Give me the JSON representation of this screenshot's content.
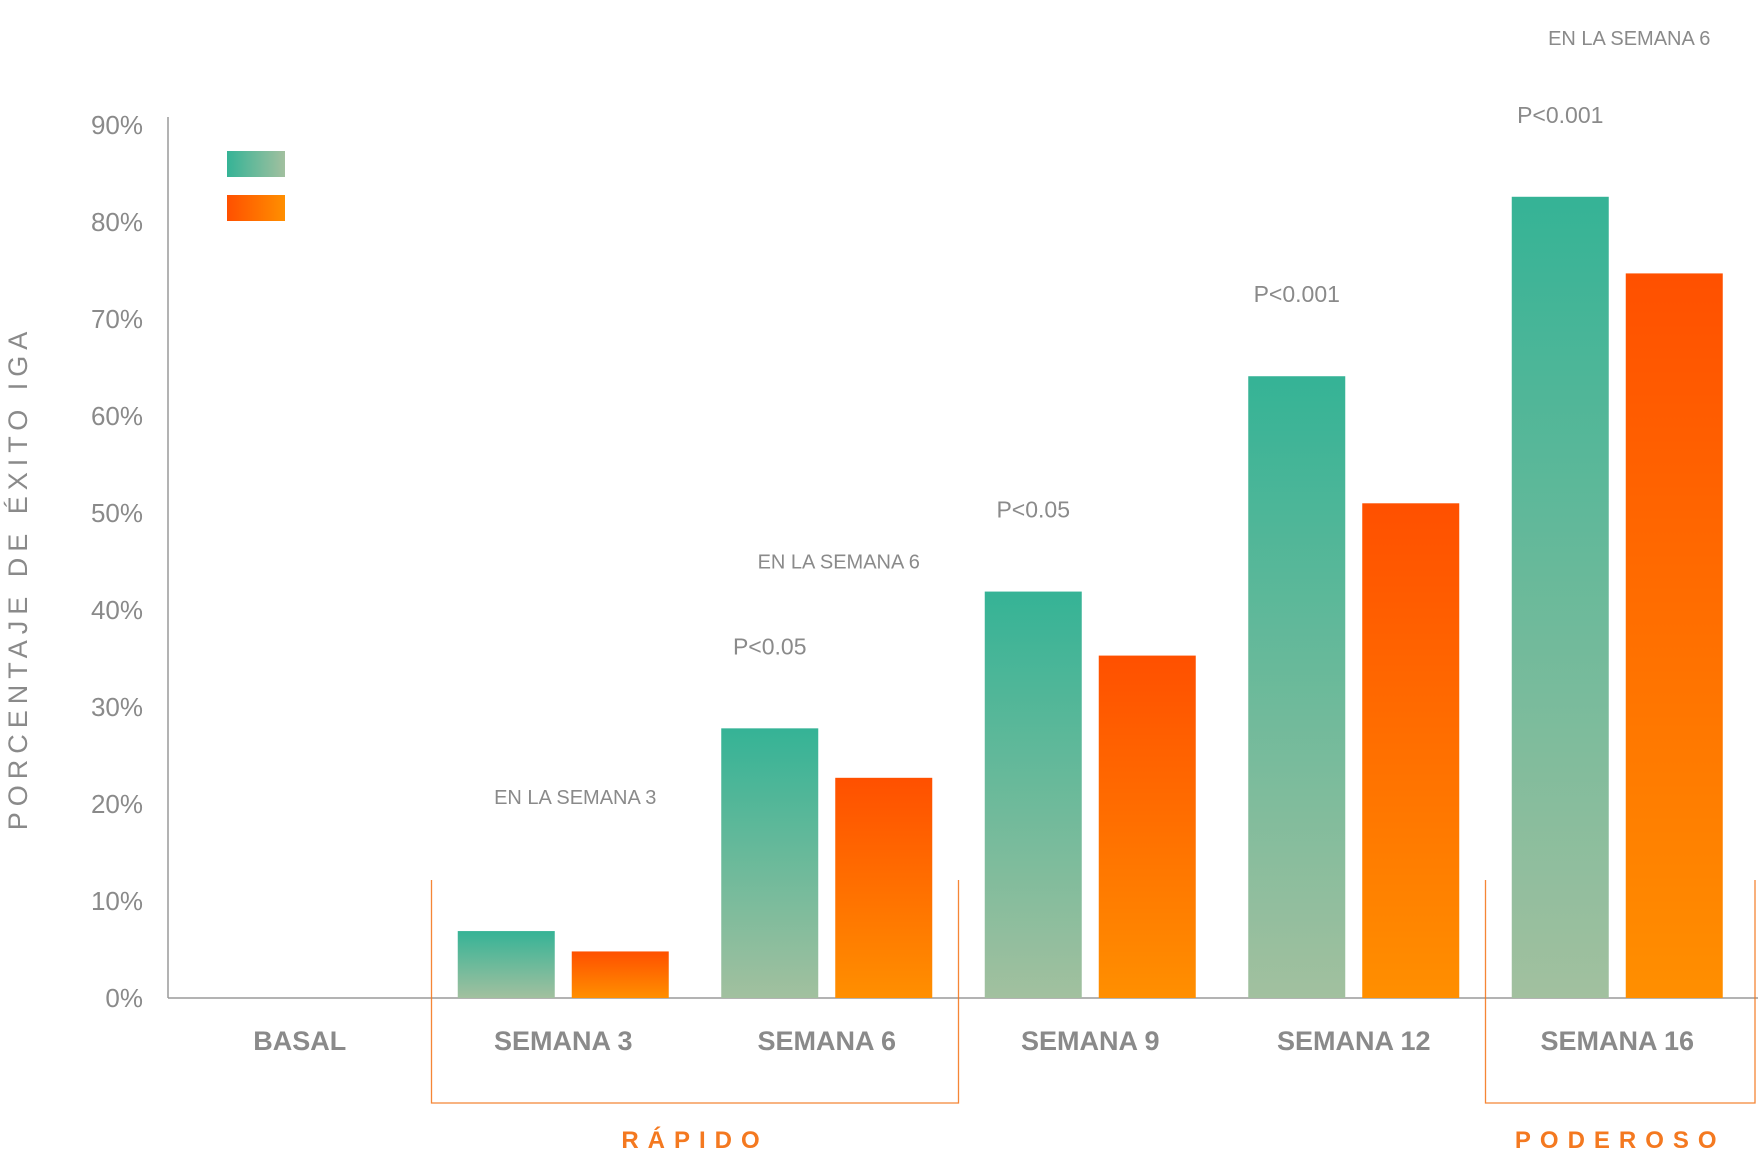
{
  "chart_data": {
    "type": "bar",
    "ylabel": "PORCENTAJE DE ÉXITO IGA",
    "ylim": [
      0,
      90
    ],
    "y_ticks": [
      "0%",
      "10%",
      "20%",
      "30%",
      "40%",
      "50%",
      "60%",
      "70%",
      "80%",
      "90%"
    ],
    "categories": [
      "BASAL",
      "SEMANA 3",
      "SEMANA 6",
      "SEMANA 9",
      "SEMANA 12",
      "SEMANA 16"
    ],
    "series": [
      {
        "values": [
          0,
          6.9,
          27.8,
          41.9,
          64.1,
          82.6
        ]
      },
      {
        "values": [
          0,
          4.8,
          22.7,
          35.3,
          51.0,
          74.7
        ]
      }
    ],
    "p_values": [
      "",
      "",
      "P<0.05",
      "P<0.05",
      "P<0.001",
      "P<0.001"
    ],
    "notes": [
      {
        "text": "EN LA SEMANA 3",
        "category": 1
      },
      {
        "text": "EN LA SEMANA 6",
        "category": 2
      },
      {
        "text": "EN LA SEMANA 6",
        "category": 5
      }
    ],
    "groups": [
      {
        "label": "RÁPIDO",
        "from": 1,
        "to": 2
      },
      {
        "label": "PODEROSO",
        "from": 5,
        "to": 5
      }
    ],
    "colors": {
      "series1_top": "#35b396",
      "series1_bottom": "#a2c09f",
      "series2_top": "#ff5000",
      "series2_bottom": "#ff8f00",
      "axis": "#9a9a9a",
      "text": "#8a8a8a",
      "accent": "#f47920"
    },
    "grid": false,
    "legend": "top-left, color swatches only"
  }
}
